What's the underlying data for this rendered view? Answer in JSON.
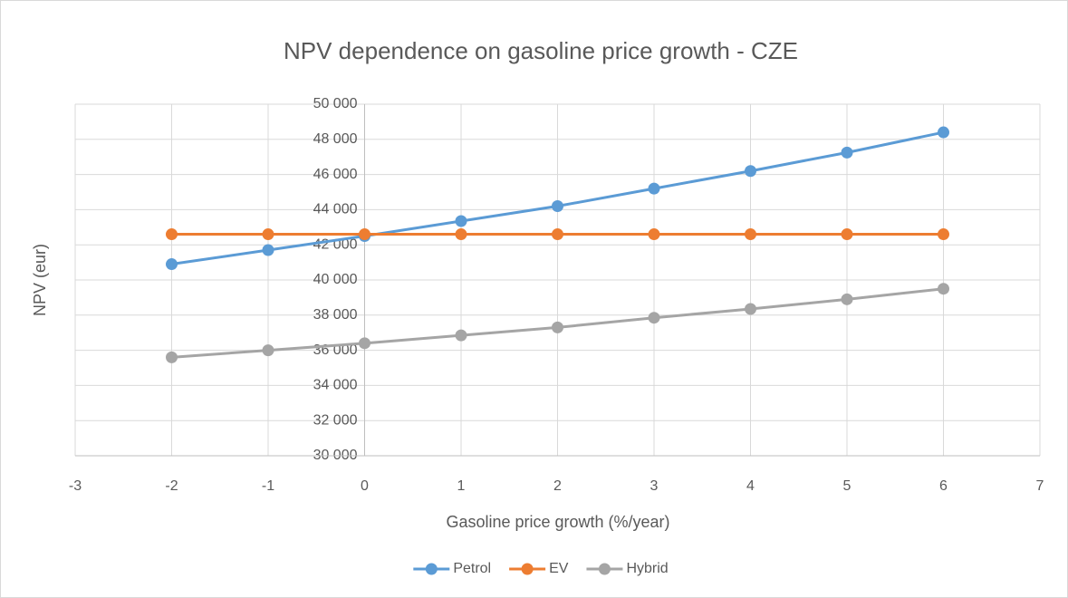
{
  "chart_data": {
    "type": "scatter",
    "title": "NPV dependence on gasoline price growth - CZE",
    "x_label": "Gasoline price growth (%/year)",
    "y_label": "NPV (eur)",
    "x": [
      -2,
      -1,
      0,
      1,
      2,
      3,
      4,
      5,
      6
    ],
    "series": [
      {
        "name": "Petrol",
        "color": "#5b9bd5",
        "values": [
          40900,
          41700,
          42500,
          43350,
          44200,
          45200,
          46200,
          47250,
          48400
        ]
      },
      {
        "name": "EV",
        "color": "#ed7d31",
        "values": [
          42600,
          42600,
          42600,
          42600,
          42600,
          42600,
          42600,
          42600,
          42600
        ]
      },
      {
        "name": "Hybrid",
        "color": "#a5a5a5",
        "values": [
          35600,
          36000,
          36400,
          36850,
          37300,
          37850,
          38350,
          38900,
          39500
        ]
      }
    ],
    "xlim": [
      -3,
      7
    ],
    "xticks": [
      -3,
      -2,
      -1,
      0,
      1,
      2,
      3,
      4,
      5,
      6,
      7
    ],
    "ylim": [
      30000,
      50000
    ],
    "yticks": [
      {
        "value": 30000,
        "label": "30 000"
      },
      {
        "value": 32000,
        "label": "32 000"
      },
      {
        "value": 34000,
        "label": "34 000"
      },
      {
        "value": 36000,
        "label": "36 000"
      },
      {
        "value": 38000,
        "label": "38 000"
      },
      {
        "value": 40000,
        "label": "40 000"
      },
      {
        "value": 42000,
        "label": "42 000"
      },
      {
        "value": 44000,
        "label": "44 000"
      },
      {
        "value": 46000,
        "label": "46 000"
      },
      {
        "value": 48000,
        "label": "48 000"
      },
      {
        "value": 50000,
        "label": "50 000"
      }
    ],
    "y_axis_crossing": 0,
    "grid": true,
    "legend": "bottom"
  }
}
